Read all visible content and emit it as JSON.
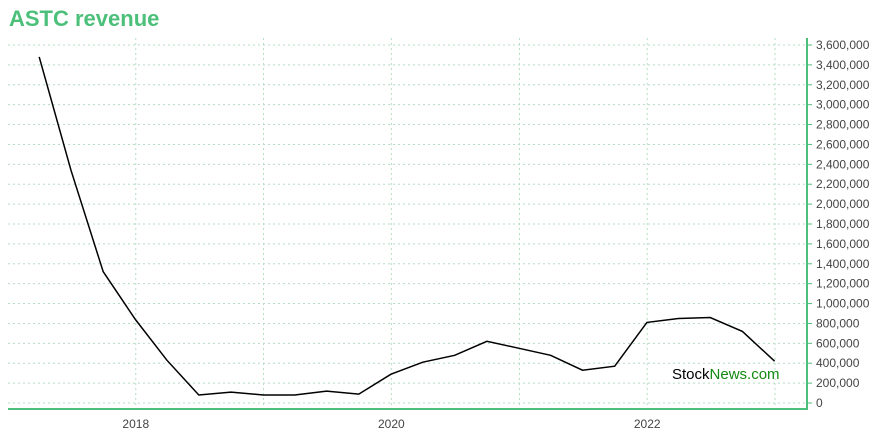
{
  "chart_data": {
    "type": "line",
    "title": "ASTC revenue",
    "xlabel": "",
    "ylabel": "",
    "x": [
      "2017-03-31",
      "2017-06-30",
      "2017-09-30",
      "2017-12-31",
      "2018-03-31",
      "2018-06-30",
      "2018-09-30",
      "2018-12-31",
      "2019-03-31",
      "2019-06-30",
      "2019-09-30",
      "2019-12-31",
      "2020-03-31",
      "2020-06-30",
      "2020-09-30",
      "2020-12-31",
      "2021-03-31",
      "2021-06-30",
      "2021-09-30",
      "2021-12-31",
      "2022-03-31",
      "2022-06-30",
      "2022-09-30",
      "2022-12-31"
    ],
    "values": [
      3480000,
      2340000,
      1320000,
      840000,
      430000,
      80000,
      110000,
      80000,
      80000,
      120000,
      90000,
      290000,
      410000,
      480000,
      620000,
      550000,
      480000,
      330000,
      370000,
      810000,
      850000,
      860000,
      720000,
      420000
    ],
    "x_ticks": [
      "2018",
      "2020",
      "2022"
    ],
    "y_ticks": [
      "0",
      "200,000",
      "400,000",
      "600,000",
      "800,000",
      "1,000,000",
      "1,200,000",
      "1,400,000",
      "1,600,000",
      "1,800,000",
      "2,000,000",
      "2,200,000",
      "2,400,000",
      "2,600,000",
      "2,800,000",
      "3,000,000",
      "3,200,000",
      "3,400,000",
      "3,600,000"
    ],
    "ylim": [
      0,
      3600000
    ],
    "grid": true,
    "axis_side": "right"
  },
  "watermark": {
    "part1": "Stock",
    "part2": "News.com"
  },
  "colors": {
    "accent": "#4cc07a",
    "line": "#000000",
    "grid": "#b5dcc4",
    "watermark_green": "#128a12"
  }
}
